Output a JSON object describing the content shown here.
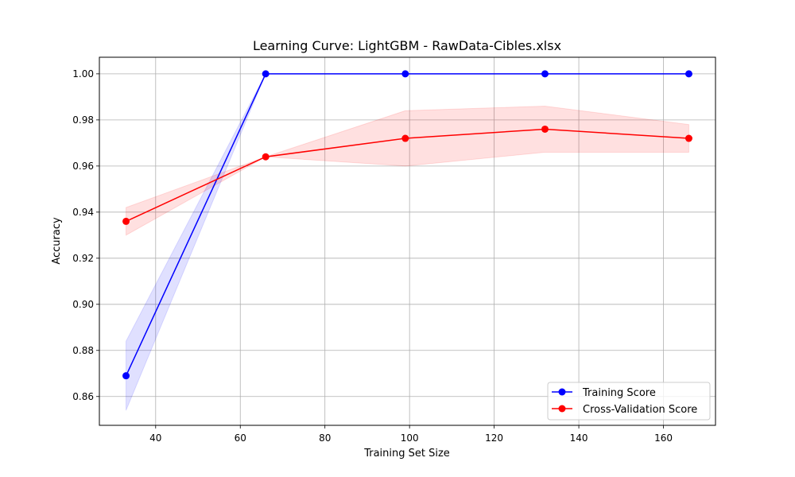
{
  "chart_data": {
    "type": "line",
    "title": "Learning Curve: LightGBM - RawData-Cibles.xlsx",
    "xlabel": "Training Set Size",
    "ylabel": "Accuracy",
    "xlim": [
      26.7,
      172.3
    ],
    "ylim": [
      0.8475,
      1.0072
    ],
    "xticks": [
      40,
      60,
      80,
      100,
      120,
      140,
      160
    ],
    "yticks": [
      0.86,
      0.88,
      0.9,
      0.92,
      0.94,
      0.96,
      0.98,
      1.0
    ],
    "ytick_labels": [
      "0.86",
      "0.88",
      "0.90",
      "0.92",
      "0.94",
      "0.96",
      "0.98",
      "1.00"
    ],
    "grid": true,
    "legend_position": "bottom-right",
    "x": [
      33,
      66,
      99,
      132,
      166
    ],
    "series": [
      {
        "name": "Training Score",
        "color": "#0000ff",
        "values": [
          0.869,
          1.0,
          1.0,
          1.0,
          1.0
        ],
        "band_lower": [
          0.854,
          1.0,
          1.0,
          1.0,
          1.0
        ],
        "band_upper": [
          0.884,
          1.0,
          1.0,
          1.0,
          1.0
        ]
      },
      {
        "name": "Cross-Validation Score",
        "color": "#ff0000",
        "values": [
          0.936,
          0.964,
          0.972,
          0.976,
          0.972
        ],
        "band_lower": [
          0.93,
          0.964,
          0.96,
          0.966,
          0.966
        ],
        "band_upper": [
          0.942,
          0.964,
          0.984,
          0.986,
          0.978
        ]
      }
    ]
  }
}
